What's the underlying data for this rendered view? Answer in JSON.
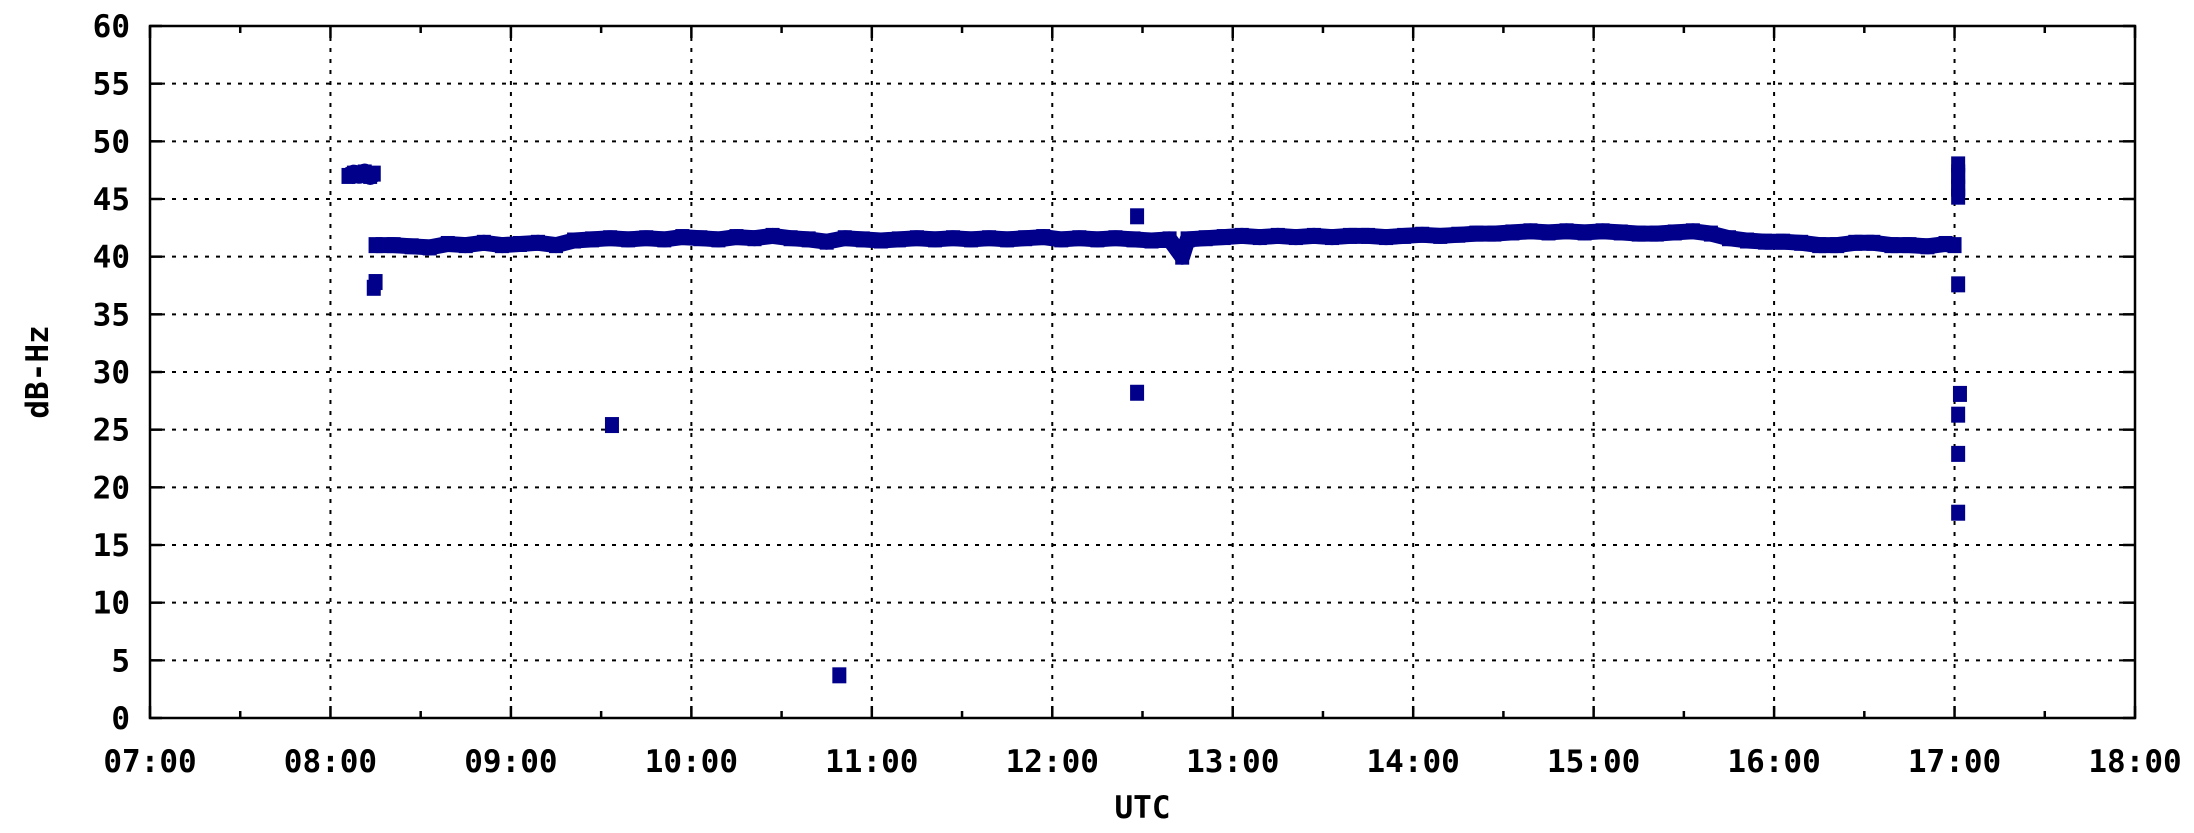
{
  "chart_data": {
    "type": "scatter",
    "xlabel": "UTC",
    "ylabel": "dB-Hz",
    "xlim": [
      7,
      18
    ],
    "ylim": [
      0,
      60
    ],
    "x_ticks": [
      {
        "value": 7,
        "label": "07:00"
      },
      {
        "value": 8,
        "label": "08:00"
      },
      {
        "value": 9,
        "label": "09:00"
      },
      {
        "value": 10,
        "label": "10:00"
      },
      {
        "value": 11,
        "label": "11:00"
      },
      {
        "value": 12,
        "label": "12:00"
      },
      {
        "value": 13,
        "label": "13:00"
      },
      {
        "value": 14,
        "label": "14:00"
      },
      {
        "value": 15,
        "label": "15:00"
      },
      {
        "value": 16,
        "label": "16:00"
      },
      {
        "value": 17,
        "label": "17:00"
      },
      {
        "value": 18,
        "label": "18:00"
      }
    ],
    "y_ticks": [
      0,
      5,
      10,
      15,
      20,
      25,
      30,
      35,
      40,
      45,
      50,
      55,
      60
    ],
    "grid": true,
    "marker_color": "#00008b",
    "series": [
      {
        "points": [
          [
            8.1,
            47.0
          ],
          [
            8.13,
            47.2
          ],
          [
            8.16,
            47.1
          ],
          [
            8.19,
            47.3
          ],
          [
            8.22,
            47.0
          ],
          [
            8.24,
            47.2
          ],
          [
            8.24,
            37.3
          ],
          [
            8.25,
            37.8
          ],
          [
            8.25,
            41.0
          ],
          [
            8.35,
            41.0
          ],
          [
            8.45,
            40.9
          ],
          [
            8.55,
            40.8
          ],
          [
            8.65,
            41.1
          ],
          [
            8.75,
            41.0
          ],
          [
            8.85,
            41.2
          ],
          [
            8.95,
            41.0
          ],
          [
            9.05,
            41.1
          ],
          [
            9.15,
            41.2
          ],
          [
            9.25,
            41.0
          ],
          [
            9.35,
            41.4
          ],
          [
            9.45,
            41.5
          ],
          [
            9.55,
            41.6
          ],
          [
            9.65,
            41.5
          ],
          [
            9.75,
            41.6
          ],
          [
            9.85,
            41.5
          ],
          [
            9.95,
            41.7
          ],
          [
            10.05,
            41.6
          ],
          [
            10.15,
            41.5
          ],
          [
            10.25,
            41.7
          ],
          [
            10.35,
            41.6
          ],
          [
            10.45,
            41.8
          ],
          [
            10.55,
            41.6
          ],
          [
            10.65,
            41.5
          ],
          [
            10.75,
            41.3
          ],
          [
            10.85,
            41.6
          ],
          [
            10.95,
            41.5
          ],
          [
            11.05,
            41.4
          ],
          [
            11.15,
            41.5
          ],
          [
            11.25,
            41.6
          ],
          [
            11.35,
            41.5
          ],
          [
            11.45,
            41.6
          ],
          [
            11.55,
            41.5
          ],
          [
            11.65,
            41.6
          ],
          [
            11.75,
            41.5
          ],
          [
            11.85,
            41.6
          ],
          [
            11.95,
            41.7
          ],
          [
            12.05,
            41.5
          ],
          [
            12.15,
            41.6
          ],
          [
            12.25,
            41.5
          ],
          [
            12.35,
            41.6
          ],
          [
            12.45,
            41.5
          ],
          [
            12.55,
            41.4
          ],
          [
            12.65,
            41.5
          ],
          [
            12.75,
            41.5
          ],
          [
            12.85,
            41.6
          ],
          [
            12.95,
            41.7
          ],
          [
            13.05,
            41.8
          ],
          [
            13.15,
            41.7
          ],
          [
            13.25,
            41.8
          ],
          [
            13.35,
            41.7
          ],
          [
            13.45,
            41.8
          ],
          [
            13.55,
            41.7
          ],
          [
            13.65,
            41.8
          ],
          [
            13.75,
            41.8
          ],
          [
            13.85,
            41.7
          ],
          [
            13.95,
            41.8
          ],
          [
            14.05,
            41.9
          ],
          [
            14.15,
            41.8
          ],
          [
            14.25,
            41.9
          ],
          [
            14.35,
            42.0
          ],
          [
            14.45,
            42.0
          ],
          [
            14.55,
            42.1
          ],
          [
            14.65,
            42.2
          ],
          [
            14.75,
            42.1
          ],
          [
            14.85,
            42.2
          ],
          [
            14.95,
            42.1
          ],
          [
            15.05,
            42.2
          ],
          [
            15.15,
            42.1
          ],
          [
            15.25,
            42.0
          ],
          [
            15.35,
            42.0
          ],
          [
            15.45,
            42.1
          ],
          [
            15.55,
            42.2
          ],
          [
            15.65,
            42.0
          ],
          [
            15.75,
            41.6
          ],
          [
            15.85,
            41.4
          ],
          [
            15.95,
            41.3
          ],
          [
            16.05,
            41.3
          ],
          [
            16.15,
            41.2
          ],
          [
            16.25,
            41.0
          ],
          [
            16.35,
            41.0
          ],
          [
            16.45,
            41.2
          ],
          [
            16.55,
            41.2
          ],
          [
            16.65,
            41.0
          ],
          [
            16.75,
            41.0
          ],
          [
            16.85,
            40.9
          ],
          [
            16.95,
            41.1
          ],
          [
            17.0,
            41.0
          ],
          [
            9.56,
            25.4
          ],
          [
            10.82,
            3.7
          ],
          [
            12.47,
            43.5
          ],
          [
            12.47,
            28.2
          ],
          [
            12.72,
            40.0
          ],
          [
            17.02,
            48.0
          ],
          [
            17.02,
            47.0
          ],
          [
            17.02,
            46.0
          ],
          [
            17.02,
            45.2
          ],
          [
            17.02,
            37.6
          ],
          [
            17.03,
            28.1
          ],
          [
            17.02,
            26.3
          ],
          [
            17.02,
            22.9
          ],
          [
            17.02,
            17.8
          ]
        ]
      }
    ]
  }
}
